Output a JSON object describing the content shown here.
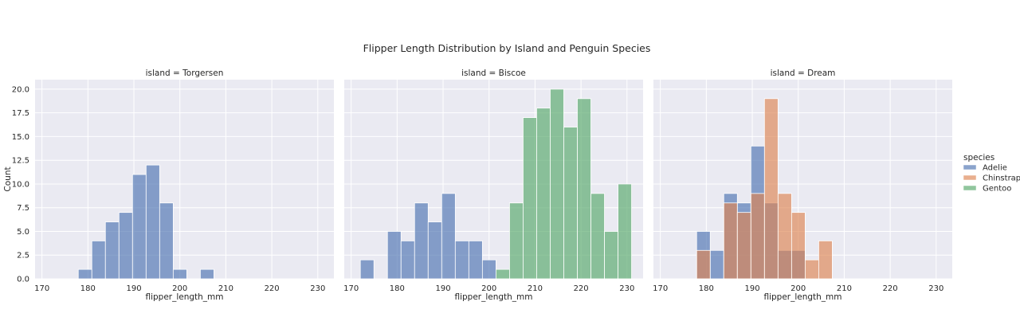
{
  "title": "Flipper Length Distribution by Island and Penguin Species",
  "colors": {
    "Adelie": "#4c72b0",
    "Chinstrap": "#dd8452",
    "Gentoo": "#55a868",
    "panel_bg": "#eaeaf2",
    "grid": "#ffffff"
  },
  "chart_data": {
    "type": "histogram",
    "title": "Flipper Length Distribution by Island and Penguin Species",
    "xlabel": "flipper_length_mm",
    "ylabel": "Count",
    "xlim": [
      168.5,
      233.5
    ],
    "ylim": [
      0,
      21
    ],
    "x_ticks": [
      170,
      180,
      190,
      200,
      210,
      220,
      230
    ],
    "y_ticks": [
      0.0,
      2.5,
      5.0,
      7.5,
      10.0,
      12.5,
      15.0,
      17.5,
      20.0
    ],
    "y_tick_labels": [
      "0.0",
      "2.5",
      "5.0",
      "7.5",
      "10.0",
      "12.5",
      "15.0",
      "17.5",
      "20.0"
    ],
    "bin_start": 172,
    "bin_width": 2.95,
    "legend": {
      "title": "species",
      "entries": [
        "Adelie",
        "Chinstrap",
        "Gentoo"
      ],
      "placement": "right"
    },
    "facets": [
      {
        "label": "island = Torgersen",
        "series": [
          {
            "name": "Adelie",
            "values": [
              0,
              0,
              1,
              4,
              6,
              7,
              11,
              12,
              8,
              1,
              0,
              1,
              0,
              0,
              0,
              0,
              0,
              0,
              0,
              0
            ]
          }
        ]
      },
      {
        "label": "island = Biscoe",
        "series": [
          {
            "name": "Adelie",
            "values": [
              2,
              0,
              5,
              4,
              8,
              6,
              9,
              4,
              4,
              2,
              0,
              0,
              0,
              0,
              0,
              0,
              0,
              0,
              0,
              0
            ]
          },
          {
            "name": "Gentoo",
            "values": [
              0,
              0,
              0,
              0,
              0,
              0,
              0,
              0,
              0,
              0,
              1,
              8,
              17,
              18,
              20,
              16,
              19,
              9,
              5,
              10
            ]
          }
        ]
      },
      {
        "label": "island = Dream",
        "series": [
          {
            "name": "Adelie",
            "values": [
              0,
              0,
              5,
              3,
              9,
              8,
              14,
              8,
              3,
              3,
              0,
              0,
              0,
              0,
              0,
              0,
              0,
              0,
              0,
              0
            ]
          },
          {
            "name": "Chinstrap",
            "values": [
              0,
              0,
              3,
              0,
              8,
              7,
              9,
              19,
              9,
              7,
              2,
              4,
              0,
              0,
              0,
              0,
              0,
              0,
              0,
              0
            ]
          }
        ]
      }
    ]
  }
}
